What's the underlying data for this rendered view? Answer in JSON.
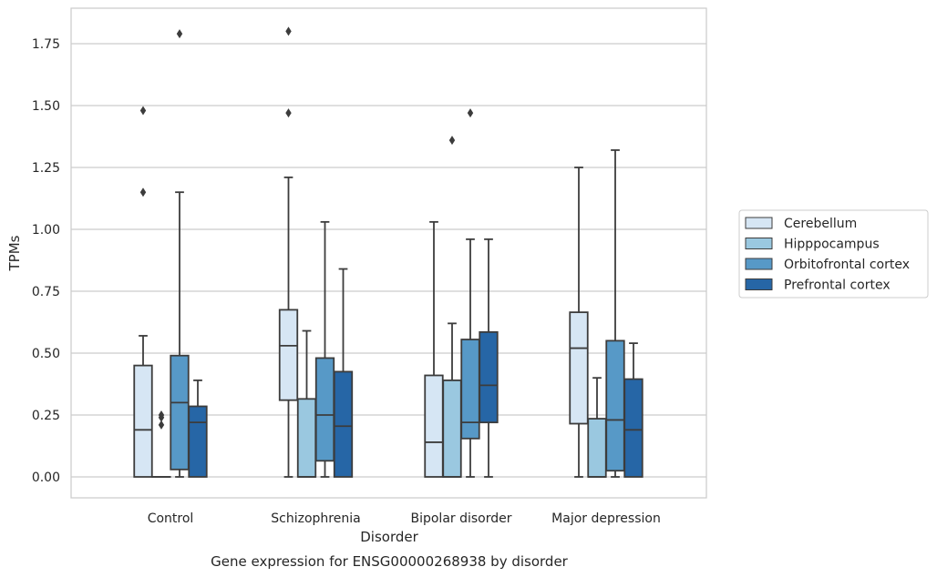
{
  "chart_data": {
    "type": "box",
    "caption": "Gene expression for ENSG00000268938 by disorder",
    "xlabel": "Disorder",
    "ylabel": "TPMs",
    "ylim": [
      -0.09,
      1.9
    ],
    "yticks": [
      "0.00",
      "0.25",
      "0.50",
      "0.75",
      "1.00",
      "1.25",
      "1.50",
      "1.75"
    ],
    "grid": true,
    "legend_position": "right",
    "categories": [
      "Control",
      "Schizophrenia",
      "Bipolar disorder",
      "Major depression"
    ],
    "series": [
      {
        "name": "Cerebellum",
        "color": "#d6e6f4",
        "boxes": [
          {
            "min": 0.0,
            "q1": 0.0,
            "median": 0.19,
            "q3": 0.45,
            "max": 0.57,
            "outliers": [
              1.15,
              1.48
            ]
          },
          {
            "min": 0.0,
            "q1": 0.31,
            "median": 0.53,
            "q3": 0.675,
            "max": 1.21,
            "outliers": [
              1.47,
              1.8
            ]
          },
          {
            "min": 0.0,
            "q1": 0.0,
            "median": 0.14,
            "q3": 0.41,
            "max": 1.03,
            "outliers": []
          },
          {
            "min": 0.0,
            "q1": 0.215,
            "median": 0.52,
            "q3": 0.665,
            "max": 1.25,
            "outliers": []
          }
        ]
      },
      {
        "name": "Hipppocampus",
        "color": "#9ac8e0",
        "boxes": [
          {
            "min": 0.0,
            "q1": 0.0,
            "median": 0.0,
            "q3": 0.0,
            "max": 0.0,
            "outliers": [
              0.21,
              0.24,
              0.25
            ]
          },
          {
            "min": 0.0,
            "q1": 0.0,
            "median": 0.0,
            "q3": 0.315,
            "max": 0.59,
            "outliers": []
          },
          {
            "min": 0.0,
            "q1": 0.0,
            "median": 0.0,
            "q3": 0.39,
            "max": 0.62,
            "outliers": [
              1.36
            ]
          },
          {
            "min": 0.0,
            "q1": 0.0,
            "median": 0.0,
            "q3": 0.235,
            "max": 0.4,
            "outliers": []
          }
        ]
      },
      {
        "name": "Orbitofrontal cortex",
        "color": "#5799c7",
        "boxes": [
          {
            "min": 0.0,
            "q1": 0.03,
            "median": 0.3,
            "q3": 0.49,
            "max": 1.15,
            "outliers": [
              1.79
            ]
          },
          {
            "min": 0.0,
            "q1": 0.065,
            "median": 0.25,
            "q3": 0.48,
            "max": 1.03,
            "outliers": []
          },
          {
            "min": 0.0,
            "q1": 0.155,
            "median": 0.22,
            "q3": 0.555,
            "max": 0.96,
            "outliers": [
              1.47
            ]
          },
          {
            "min": 0.0,
            "q1": 0.025,
            "median": 0.23,
            "q3": 0.55,
            "max": 1.32,
            "outliers": []
          }
        ]
      },
      {
        "name": "Prefrontal cortex",
        "color": "#2666a6",
        "boxes": [
          {
            "min": 0.0,
            "q1": 0.0,
            "median": 0.22,
            "q3": 0.285,
            "max": 0.39,
            "outliers": []
          },
          {
            "min": 0.0,
            "q1": 0.0,
            "median": 0.205,
            "q3": 0.425,
            "max": 0.84,
            "outliers": []
          },
          {
            "min": 0.0,
            "q1": 0.22,
            "median": 0.37,
            "q3": 0.585,
            "max": 0.96,
            "outliers": []
          },
          {
            "min": 0.0,
            "q1": 0.0,
            "median": 0.19,
            "q3": 0.395,
            "max": 0.54,
            "outliers": []
          }
        ]
      }
    ]
  }
}
